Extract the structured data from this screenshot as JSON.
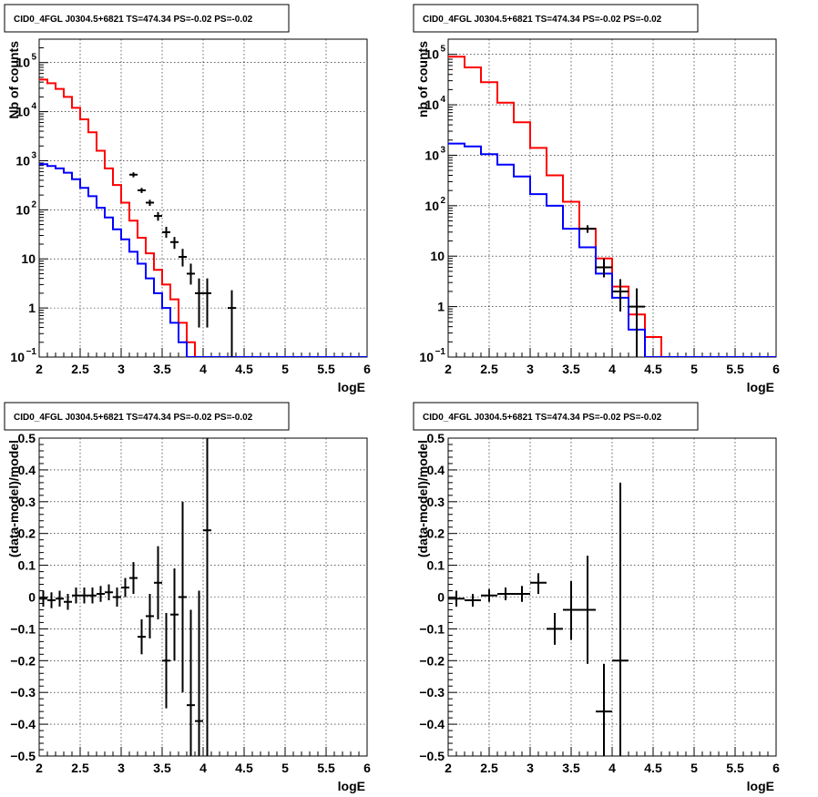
{
  "chart_data": [
    {
      "type": "line",
      "title": "CID0_4FGL J0304.5+6821 TS=474.34 PS=-0.02 PS=-0.02",
      "xlabel": "logE",
      "ylabel": "Nb of counts",
      "xlim": [
        2,
        6
      ],
      "ylim": [
        0.1,
        300000
      ],
      "yscale": "log",
      "grid": true,
      "xticks": [
        "2",
        "2.5",
        "3",
        "3.5",
        "4",
        "4.5",
        "5",
        "5.5",
        "6"
      ],
      "yticks": [
        {
          "value": 0.1,
          "base": "10",
          "exp": "−1"
        },
        {
          "value": 1,
          "base": "1",
          "exp": ""
        },
        {
          "value": 10,
          "base": "10",
          "exp": ""
        },
        {
          "value": 100,
          "base": "10",
          "exp": "2"
        },
        {
          "value": 1000,
          "base": "10",
          "exp": "3"
        },
        {
          "value": 10000,
          "base": "10",
          "exp": "4"
        },
        {
          "value": 100000,
          "base": "10",
          "exp": "5"
        }
      ],
      "bin_edges_start": 2.0,
      "bin_width": 0.1,
      "series": [
        {
          "color": "#ff0000",
          "style": "step",
          "values": [
            45000,
            38000,
            29000,
            20000,
            12000,
            7000,
            3800,
            1600,
            700,
            320,
            140,
            60,
            27,
            13,
            6,
            3,
            1.5,
            0.5,
            0.2,
            0.1,
            0.1,
            0.1,
            0.1,
            0.1,
            0.1,
            0.1,
            0.1,
            0.1,
            0.1,
            0.1,
            0.1,
            0.1,
            0.1,
            0.1,
            0.1,
            0.1,
            0.1,
            0.1,
            0.1,
            0.1
          ]
        },
        {
          "color": "#0000ff",
          "style": "step",
          "values": [
            850,
            780,
            700,
            570,
            420,
            280,
            190,
            110,
            70,
            40,
            25,
            14,
            8,
            4,
            2,
            1,
            0.5,
            0.2,
            0.1,
            0.1,
            0.1,
            0.1,
            0.1,
            0.1,
            0.1,
            0.1,
            0.1,
            0.1,
            0.1,
            0.1,
            0.1,
            0.1,
            0.1,
            0.1,
            0.1,
            0.1,
            0.1,
            0.1,
            0.1,
            0.1
          ]
        },
        {
          "color": "#000000",
          "style": "errorbar",
          "points": [
            {
              "x": 3.15,
              "y": 520,
              "ylo": 460,
              "yhi": 580,
              "xerr": 0.05
            },
            {
              "x": 3.25,
              "y": 250,
              "ylo": 220,
              "yhi": 280,
              "xerr": 0.05
            },
            {
              "x": 3.35,
              "y": 140,
              "ylo": 120,
              "yhi": 160,
              "xerr": 0.05
            },
            {
              "x": 3.45,
              "y": 75,
              "ylo": 60,
              "yhi": 90,
              "xerr": 0.05
            },
            {
              "x": 3.55,
              "y": 35,
              "ylo": 27,
              "yhi": 45,
              "xerr": 0.05
            },
            {
              "x": 3.65,
              "y": 22,
              "ylo": 16,
              "yhi": 28,
              "xerr": 0.05
            },
            {
              "x": 3.75,
              "y": 11,
              "ylo": 7,
              "yhi": 16,
              "xerr": 0.05
            },
            {
              "x": 3.85,
              "y": 5,
              "ylo": 3,
              "yhi": 8,
              "xerr": 0.05
            },
            {
              "x": 3.95,
              "y": 2,
              "ylo": 0.4,
              "yhi": 4,
              "xerr": 0.05
            },
            {
              "x": 4.05,
              "y": 2,
              "ylo": 0.4,
              "yhi": 4,
              "xerr": 0.05
            },
            {
              "x": 4.35,
              "y": 1,
              "ylo": 0.1,
              "yhi": 2.3,
              "xerr": 0.05
            }
          ]
        }
      ]
    },
    {
      "type": "line",
      "title": "CID0_4FGL J0304.5+6821 TS=474.34 PS=-0.02 PS=-0.02",
      "xlabel": "logE",
      "ylabel": "nb of counts",
      "xlim": [
        2,
        6
      ],
      "ylim": [
        0.1,
        200000
      ],
      "yscale": "log",
      "grid": true,
      "xticks": [
        "2",
        "2.5",
        "3",
        "3.5",
        "4",
        "4.5",
        "5",
        "5.5",
        "6"
      ],
      "yticks": [
        {
          "value": 0.1,
          "base": "10",
          "exp": "−1"
        },
        {
          "value": 1,
          "base": "1",
          "exp": ""
        },
        {
          "value": 10,
          "base": "10",
          "exp": ""
        },
        {
          "value": 100,
          "base": "10",
          "exp": "2"
        },
        {
          "value": 1000,
          "base": "10",
          "exp": "3"
        },
        {
          "value": 10000,
          "base": "10",
          "exp": "4"
        },
        {
          "value": 100000,
          "base": "10",
          "exp": "5"
        }
      ],
      "bin_edges_start": 2.0,
      "bin_width": 0.2,
      "series": [
        {
          "color": "#ff0000",
          "style": "step",
          "values": [
            90000,
            55000,
            28000,
            11000,
            4500,
            1400,
            400,
            120,
            35,
            9,
            2.5,
            0.7,
            0.25,
            0.1,
            0.1,
            0.1,
            0.1,
            0.1,
            0.1,
            0.1
          ]
        },
        {
          "color": "#0000ff",
          "style": "step",
          "values": [
            1700,
            1500,
            1050,
            650,
            380,
            170,
            100,
            35,
            15,
            4.5,
            1.5,
            0.35,
            0.1,
            0.1,
            0.1,
            0.1,
            0.1,
            0.1,
            0.1,
            0.1
          ]
        },
        {
          "color": "#000000",
          "style": "errorbar",
          "points": [
            {
              "x": 3.7,
              "y": 35,
              "ylo": 29,
              "yhi": 41,
              "xerr": 0.1
            },
            {
              "x": 3.9,
              "y": 6,
              "ylo": 3.8,
              "yhi": 9,
              "xerr": 0.1
            },
            {
              "x": 4.1,
              "y": 2,
              "ylo": 0.8,
              "yhi": 3.5,
              "xerr": 0.1
            },
            {
              "x": 4.3,
              "y": 1,
              "ylo": 0.1,
              "yhi": 2.3,
              "xerr": 0.1
            }
          ]
        }
      ]
    },
    {
      "type": "scatter",
      "title": "CID0_4FGL J0304.5+6821 TS=474.34 PS=-0.02 PS=-0.02",
      "xlabel": "logE",
      "ylabel": "(data-model)/model",
      "xlim": [
        2,
        6
      ],
      "ylim": [
        -0.5,
        0.5
      ],
      "grid": true,
      "xticks": [
        "2",
        "2.5",
        "3",
        "3.5",
        "4",
        "4.5",
        "5",
        "5.5",
        "6"
      ],
      "yticks": [
        "−0.5",
        "−0.4",
        "−0.3",
        "−0.2",
        "−0.1",
        "0",
        "0.1",
        "0.2",
        "0.3",
        "0.4",
        "0.5"
      ],
      "series": [
        {
          "color": "#000000",
          "style": "errorbar",
          "points": [
            {
              "x": 2.05,
              "y": -0.005,
              "ylo": -0.03,
              "yhi": 0.02,
              "xerr": 0.05
            },
            {
              "x": 2.15,
              "y": -0.01,
              "ylo": -0.035,
              "yhi": 0.015,
              "xerr": 0.05
            },
            {
              "x": 2.25,
              "y": -0.005,
              "ylo": -0.03,
              "yhi": 0.02,
              "xerr": 0.05
            },
            {
              "x": 2.35,
              "y": -0.015,
              "ylo": -0.04,
              "yhi": 0.01,
              "xerr": 0.05
            },
            {
              "x": 2.45,
              "y": 0.005,
              "ylo": -0.02,
              "yhi": 0.03,
              "xerr": 0.05
            },
            {
              "x": 2.55,
              "y": 0.005,
              "ylo": -0.02,
              "yhi": 0.03,
              "xerr": 0.05
            },
            {
              "x": 2.65,
              "y": 0.005,
              "ylo": -0.02,
              "yhi": 0.03,
              "xerr": 0.05
            },
            {
              "x": 2.75,
              "y": 0.01,
              "ylo": -0.015,
              "yhi": 0.035,
              "xerr": 0.05
            },
            {
              "x": 2.85,
              "y": 0.015,
              "ylo": -0.01,
              "yhi": 0.04,
              "xerr": 0.05
            },
            {
              "x": 2.95,
              "y": 0.0,
              "ylo": -0.03,
              "yhi": 0.03,
              "xerr": 0.05
            },
            {
              "x": 3.05,
              "y": 0.03,
              "ylo": 0.0,
              "yhi": 0.06,
              "xerr": 0.05
            },
            {
              "x": 3.15,
              "y": 0.06,
              "ylo": 0.01,
              "yhi": 0.11,
              "xerr": 0.05
            },
            {
              "x": 3.25,
              "y": -0.125,
              "ylo": -0.18,
              "yhi": -0.07,
              "xerr": 0.05
            },
            {
              "x": 3.35,
              "y": -0.06,
              "ylo": -0.13,
              "yhi": 0.01,
              "xerr": 0.05
            },
            {
              "x": 3.45,
              "y": 0.045,
              "ylo": -0.07,
              "yhi": 0.16,
              "xerr": 0.05
            },
            {
              "x": 3.55,
              "y": -0.2,
              "ylo": -0.35,
              "yhi": -0.05,
              "xerr": 0.05
            },
            {
              "x": 3.65,
              "y": -0.055,
              "ylo": -0.2,
              "yhi": 0.09,
              "xerr": 0.05
            },
            {
              "x": 3.75,
              "y": 0.0,
              "ylo": -0.3,
              "yhi": 0.3,
              "xerr": 0.05
            },
            {
              "x": 3.85,
              "y": -0.34,
              "ylo": -0.5,
              "yhi": -0.04,
              "xerr": 0.05
            },
            {
              "x": 3.95,
              "y": -0.39,
              "ylo": -0.5,
              "yhi": 0.02,
              "xerr": 0.05
            },
            {
              "x": 4.05,
              "y": 0.21,
              "ylo": -0.5,
              "yhi": 0.5,
              "xerr": 0.05
            }
          ]
        }
      ]
    },
    {
      "type": "scatter",
      "title": "CID0_4FGL J0304.5+6821 TS=474.34 PS=-0.02 PS=-0.02",
      "xlabel": "logE",
      "ylabel": "(data-model)/model",
      "xlim": [
        2,
        6
      ],
      "ylim": [
        -0.5,
        0.5
      ],
      "grid": true,
      "xticks": [
        "2",
        "2.5",
        "3",
        "3.5",
        "4",
        "4.5",
        "5",
        "5.5",
        "6"
      ],
      "yticks": [
        "−0.5",
        "−0.4",
        "−0.3",
        "−0.2",
        "−0.1",
        "0",
        "0.1",
        "0.2",
        "0.3",
        "0.4",
        "0.5"
      ],
      "series": [
        {
          "color": "#000000",
          "style": "errorbar",
          "points": [
            {
              "x": 2.1,
              "y": -0.005,
              "ylo": -0.03,
              "yhi": 0.02,
              "xerr": 0.1
            },
            {
              "x": 2.3,
              "y": -0.01,
              "ylo": -0.03,
              "yhi": 0.01,
              "xerr": 0.1
            },
            {
              "x": 2.5,
              "y": 0.005,
              "ylo": -0.015,
              "yhi": 0.025,
              "xerr": 0.1
            },
            {
              "x": 2.7,
              "y": 0.01,
              "ylo": -0.01,
              "yhi": 0.03,
              "xerr": 0.1
            },
            {
              "x": 2.9,
              "y": 0.01,
              "ylo": -0.015,
              "yhi": 0.035,
              "xerr": 0.1
            },
            {
              "x": 3.1,
              "y": 0.045,
              "ylo": 0.01,
              "yhi": 0.075,
              "xerr": 0.1
            },
            {
              "x": 3.3,
              "y": -0.1,
              "ylo": -0.15,
              "yhi": -0.05,
              "xerr": 0.1
            },
            {
              "x": 3.5,
              "y": -0.04,
              "ylo": -0.135,
              "yhi": 0.05,
              "xerr": 0.1
            },
            {
              "x": 3.7,
              "y": -0.04,
              "ylo": -0.21,
              "yhi": 0.13,
              "xerr": 0.1
            },
            {
              "x": 3.9,
              "y": -0.36,
              "ylo": -0.5,
              "yhi": -0.21,
              "xerr": 0.1
            },
            {
              "x": 4.1,
              "y": -0.2,
              "ylo": -0.5,
              "yhi": 0.36,
              "xerr": 0.1
            }
          ]
        }
      ]
    }
  ]
}
